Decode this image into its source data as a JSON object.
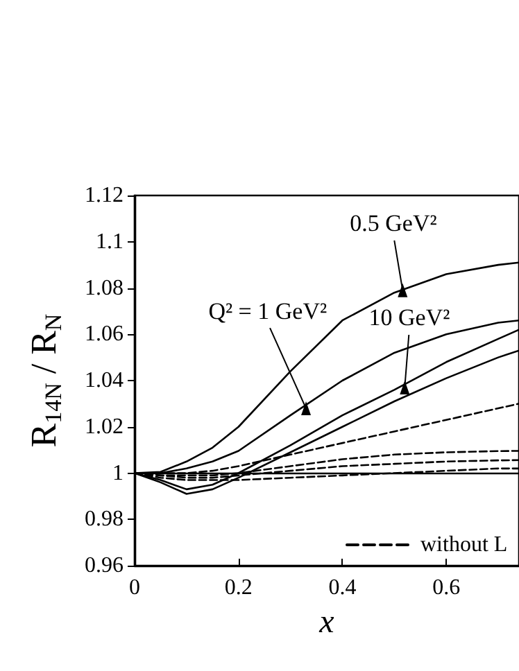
{
  "chart_data": {
    "type": "line",
    "xlabel": "x",
    "ylabel": "R$_{14N}$ / R$_{N}$",
    "x": [
      0,
      0.05,
      0.1,
      0.15,
      0.2,
      0.3,
      0.4,
      0.5,
      0.6,
      0.7,
      0.74
    ],
    "series": [
      {
        "color": "#000000",
        "values": [
          1,
          1.0005,
          1.005,
          1.011,
          1.02,
          1.044,
          1.066,
          1.078,
          1.086,
          1.09,
          1.091
        ]
      },
      {
        "color": "#000000",
        "values": [
          1,
          1.0,
          1.002,
          1.005,
          1.0096,
          1.025,
          1.04,
          1.052,
          1.06,
          1.065,
          1.066
        ]
      },
      {
        "color": "#000000",
        "values": [
          1,
          0.997,
          0.993,
          0.995,
          1.0,
          1.012,
          1.025,
          1.036,
          1.048,
          1.058,
          1.062
        ]
      },
      {
        "color": "#000000",
        "values": [
          1,
          0.996,
          0.991,
          0.993,
          0.998,
          1.009,
          1.02,
          1.031,
          1.041,
          1.05,
          1.053
        ]
      },
      {
        "name": "without L",
        "color": "#000000",
        "line_style": "dashed",
        "values": [
          1,
          1,
          1,
          1.001,
          1.003,
          1.008,
          1.013,
          1.018,
          1.023,
          1.028,
          1.03
        ]
      },
      {
        "color": "#000000",
        "line_style": "dashed",
        "values": [
          1,
          0.999,
          0.999,
          0.999,
          1.0,
          1.003,
          1.006,
          1.008,
          1.009,
          1.0095,
          1.0096
        ]
      },
      {
        "color": "#000000",
        "line_style": "dashed",
        "values": [
          1,
          0.999,
          0.998,
          0.998,
          0.999,
          1.001,
          1.003,
          1.004,
          1.005,
          1.0055,
          1.0056
        ]
      },
      {
        "color": "#000000",
        "line_style": "dashed",
        "values": [
          1,
          0.998,
          0.997,
          0.997,
          0.997,
          0.998,
          0.999,
          1.0,
          1.001,
          1.002,
          1.002
        ]
      }
    ],
    "annotations": [
      {
        "text": "0.5 GeV²",
        "x": 0.516,
        "y": 1.079
      },
      {
        "text": "Q² = 1 GeV²",
        "x": 0.33,
        "y": 1.028
      },
      {
        "text": "10 GeV²",
        "x": 0.52,
        "y": 1.037
      }
    ],
    "ref_lines": [
      {
        "axis": "y",
        "value": 1,
        "color": "#000000"
      }
    ],
    "xlim": [
      0,
      0.74
    ],
    "xticks": [
      0,
      0.2,
      0.4,
      0.6
    ],
    "ylim": [
      0.96,
      1.12
    ],
    "yticks": [
      0.96,
      0.98,
      1,
      1.02,
      1.04,
      1.06,
      1.08,
      1.1,
      1.12
    ],
    "grid": false,
    "legend": "bottom right",
    "marker": "none"
  }
}
